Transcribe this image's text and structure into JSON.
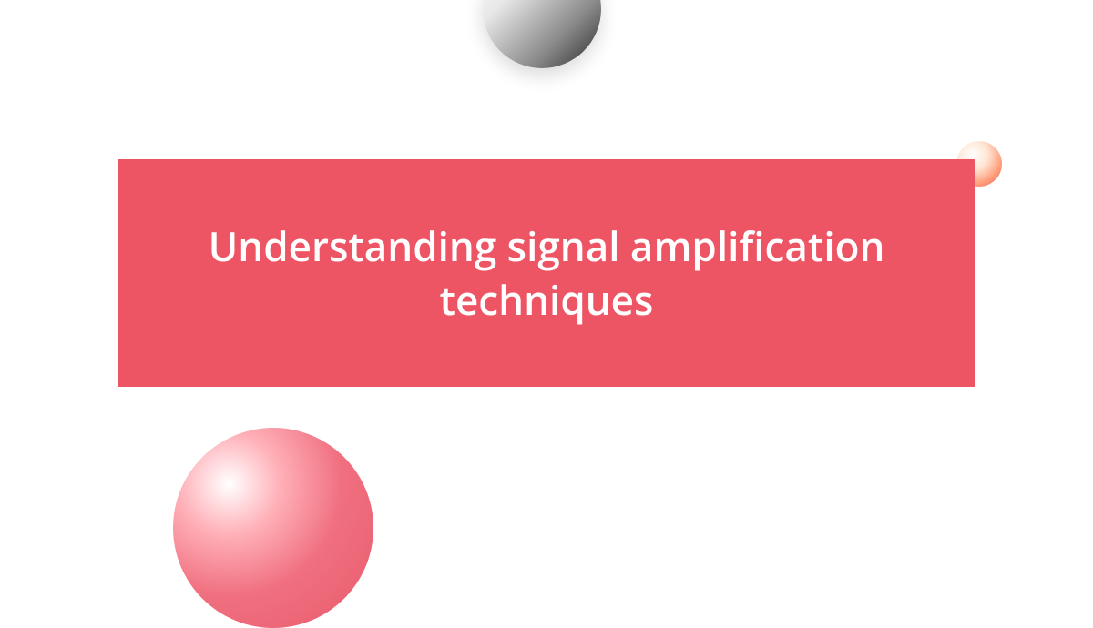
{
  "title": {
    "text": "Understanding signal amplification techniques",
    "color": "#ffffff",
    "fontsize": 44,
    "box_background": "#ed5565"
  },
  "background_color": "#ffffff",
  "decorations": {
    "circle_top": {
      "gradient_start": "#ffffff",
      "gradient_end": "#2a2a2a",
      "diameter": 130
    },
    "circle_right": {
      "gradient_start": "#ffffff",
      "gradient_end": "#e85a6b",
      "diameter": 50
    },
    "circle_bottom": {
      "gradient_start": "#ffffff",
      "gradient_end": "#e85a6b",
      "diameter": 220
    }
  }
}
